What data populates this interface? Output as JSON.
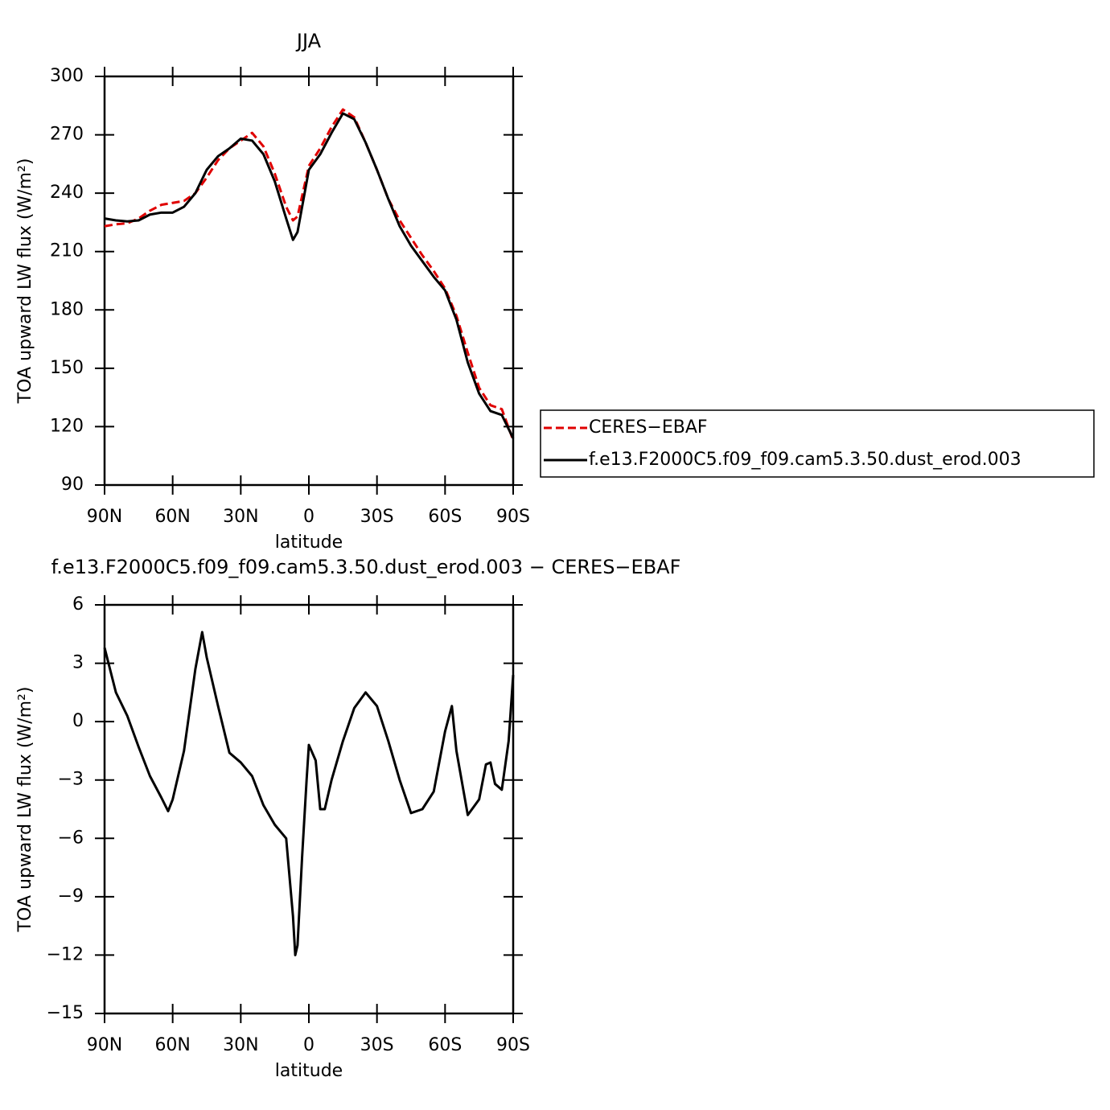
{
  "chart_data": [
    {
      "type": "line",
      "title": "JJA",
      "xlabel": "latitude",
      "ylabel": "TOA upward LW flux (W/m²)",
      "x": [
        90,
        85,
        80,
        75,
        70,
        65,
        60,
        55,
        50,
        45,
        40,
        35,
        30,
        25,
        20,
        15,
        10,
        7,
        5,
        0,
        -5,
        -10,
        -15,
        -20,
        -25,
        -30,
        -35,
        -40,
        -45,
        -50,
        -55,
        -60,
        -65,
        -70,
        -75,
        -80,
        -85,
        -90
      ],
      "xlim": [
        90,
        -90
      ],
      "xticks": [
        {
          "value": 90,
          "label": "90N"
        },
        {
          "value": 60,
          "label": "60N"
        },
        {
          "value": 30,
          "label": "30N"
        },
        0,
        {
          "value": -30,
          "label": "30S"
        },
        {
          "value": -60,
          "label": "60S"
        },
        {
          "value": -90,
          "label": "90S"
        }
      ],
      "ylim": [
        90,
        300
      ],
      "yticks": [
        90,
        120,
        150,
        180,
        210,
        240,
        270,
        300
      ],
      "legend": "right",
      "series": [
        {
          "name": "CERES−EBAF",
          "color": "#e00000",
          "linestyle": "dashed",
          "values": [
            223,
            224,
            224.5,
            227,
            231,
            234,
            235,
            236,
            240,
            248,
            257,
            263,
            267,
            271,
            264,
            250,
            233,
            226,
            228,
            254,
            263,
            274,
            283,
            279,
            266,
            252,
            237,
            226,
            217,
            208,
            200,
            191,
            177,
            158,
            140,
            131,
            129,
            113
          ]
        },
        {
          "name": "f.e13.F2000C5.f09_f09.cam5.3.50.dust_erod.003",
          "color": "#000000",
          "linestyle": "solid",
          "values": [
            227,
            226,
            225.5,
            226,
            229,
            230,
            230,
            233,
            240,
            252,
            259,
            263,
            268,
            267,
            260,
            246,
            227,
            216,
            220,
            252,
            260,
            271,
            281,
            278,
            266,
            252,
            237,
            223,
            213,
            205,
            197,
            190,
            175,
            153,
            137,
            128,
            126,
            114
          ]
        }
      ]
    },
    {
      "type": "line",
      "title": "f.e13.F2000C5.f09_f09.cam5.3.50.dust_erod.003 − CERES−EBAF",
      "xlabel": "latitude",
      "ylabel": "TOA upward LW flux (W/m²)",
      "x": [
        90,
        85,
        80,
        75,
        70,
        65,
        62,
        60,
        55,
        50,
        47,
        45,
        40,
        35,
        30,
        25,
        20,
        15,
        10,
        7,
        6,
        5,
        3,
        1,
        0,
        -3,
        -5,
        -7,
        -10,
        -15,
        -20,
        -25,
        -30,
        -35,
        -40,
        -45,
        -50,
        -55,
        -60,
        -63,
        -65,
        -70,
        -75,
        -78,
        -80,
        -82,
        -85,
        -88,
        -90
      ],
      "xlim": [
        90,
        -90
      ],
      "xticks": [
        {
          "value": 90,
          "label": "90N"
        },
        {
          "value": 60,
          "label": "60N"
        },
        {
          "value": 30,
          "label": "30N"
        },
        0,
        {
          "value": -30,
          "label": "30S"
        },
        {
          "value": -60,
          "label": "60S"
        },
        {
          "value": -90,
          "label": "90S"
        }
      ],
      "ylim": [
        -15,
        6
      ],
      "yticks": [
        {
          "value": -15,
          "label": "−15"
        },
        {
          "value": -12,
          "label": "−12"
        },
        {
          "value": -9,
          "label": "−9"
        },
        {
          "value": -6,
          "label": "−6"
        },
        {
          "value": -3,
          "label": "−3"
        },
        0,
        3,
        6
      ],
      "series": [
        {
          "color": "#000000",
          "linestyle": "solid",
          "values": [
            3.8,
            1.5,
            0.3,
            -1.3,
            -2.8,
            -3.9,
            -4.6,
            -4,
            -1.5,
            2.7,
            4.6,
            3.3,
            0.8,
            -1.6,
            -2.1,
            -2.8,
            -4.3,
            -5.3,
            -6,
            -10,
            -12,
            -11.5,
            -7,
            -3,
            -1.2,
            -2,
            -4.5,
            -4.5,
            -3,
            -1,
            0.7,
            1.5,
            0.8,
            -1,
            -3,
            -4.7,
            -4.5,
            -3.6,
            -0.5,
            0.8,
            -1.5,
            -4.8,
            -4,
            -2.2,
            -2.1,
            -3.2,
            -3.5,
            -1,
            2.4
          ]
        }
      ]
    }
  ]
}
